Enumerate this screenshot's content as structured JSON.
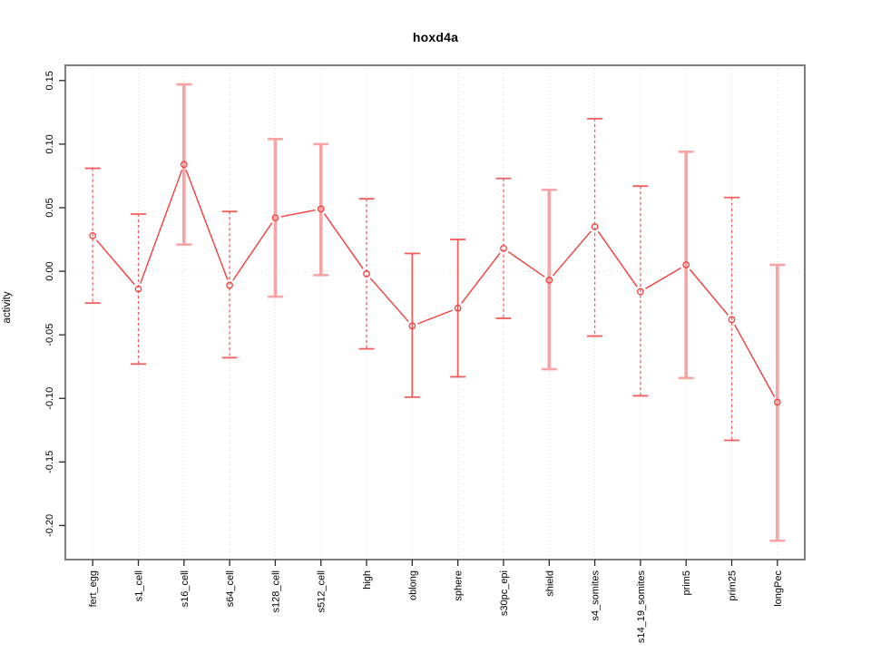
{
  "chart_title": "hoxd4a",
  "chart_data": {
    "type": "line",
    "title": "hoxd4a",
    "xlabel": "",
    "ylabel": "activity",
    "legend": "none",
    "grid": "vertical dotted gridline at each category; horizontal dotted line at y=0",
    "point_marker": "open-circle",
    "error_bars": true,
    "categories": [
      "fert_egg",
      "s1_cell",
      "s16_cell",
      "s64_cell",
      "s128_cell",
      "s512_cell",
      "high",
      "oblong",
      "sphere",
      "s30pc_epi",
      "shield",
      "s4_somites",
      "s14_19_somites",
      "prim5",
      "prim25",
      "longPec"
    ],
    "series": [
      {
        "name": "activity",
        "values": [
          0.028,
          -0.014,
          0.084,
          -0.011,
          0.042,
          0.049,
          -0.002,
          -0.043,
          -0.029,
          0.018,
          -0.007,
          0.035,
          -0.016,
          0.005,
          -0.038,
          -0.103
        ],
        "upper": [
          0.081,
          0.045,
          0.147,
          0.047,
          0.104,
          0.1,
          0.057,
          0.014,
          0.025,
          0.073,
          0.064,
          0.12,
          0.067,
          0.094,
          0.058,
          0.005
        ],
        "lower": [
          -0.025,
          -0.073,
          0.021,
          -0.068,
          -0.02,
          -0.003,
          -0.061,
          -0.099,
          -0.083,
          -0.037,
          -0.077,
          -0.051,
          -0.098,
          -0.084,
          -0.133,
          -0.212
        ]
      }
    ],
    "error_bar_styles": [
      "dashed",
      "dashed",
      "thick",
      "dashed",
      "thick",
      "thick",
      "dashed",
      "solid",
      "solid",
      "dashed",
      "thick",
      "dashed",
      "dashed",
      "thick",
      "dashed",
      "thick"
    ],
    "ytick_values": [
      0.15,
      0.1,
      0.05,
      0.0,
      -0.05,
      -0.1,
      -0.15,
      -0.2
    ],
    "ytick_labels": [
      "0.15",
      "0.10",
      "0.05",
      "0.00",
      "-0.05",
      "-0.10",
      "-0.15",
      "-0.20"
    ],
    "ylim": [
      -0.2268,
      0.162
    ],
    "colors": {
      "line": "#f23d3d",
      "point": "#f23d3d",
      "error_bar": "#f15e5e",
      "error_bar_pale": "#f9a4a4",
      "grid": "#d8d8d8",
      "frame": "#7d7d7d",
      "tick": "#2a2a2a",
      "text": "#000000",
      "background": "#ffffff"
    }
  }
}
